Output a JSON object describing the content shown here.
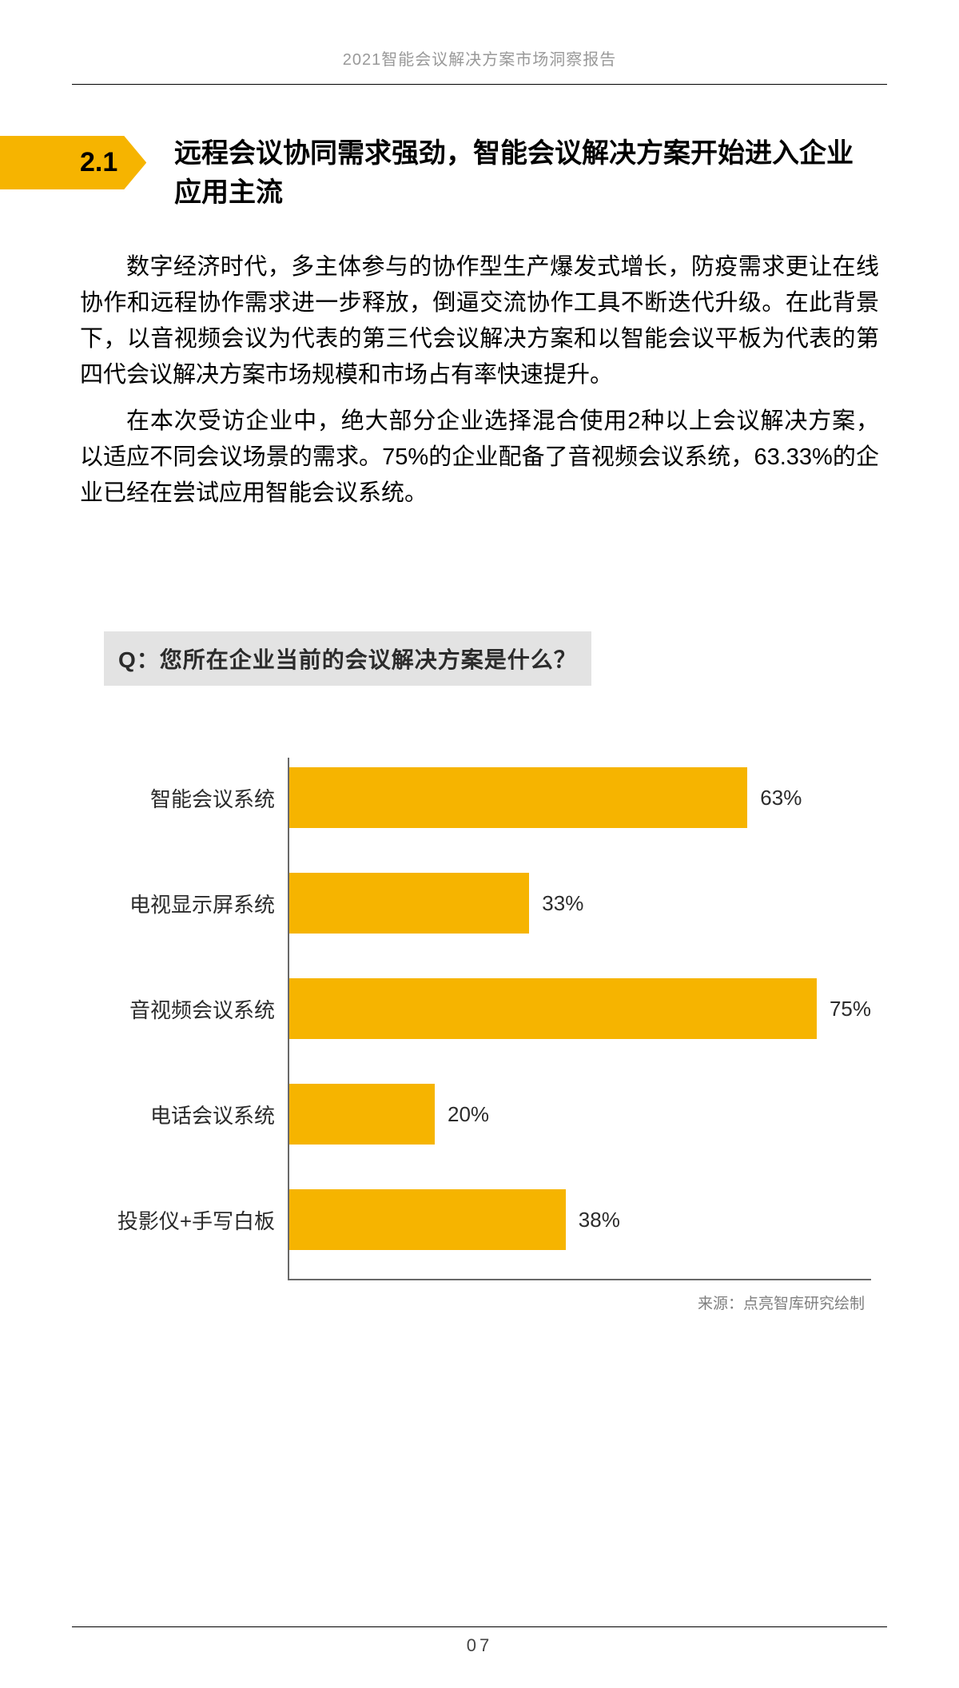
{
  "header": {
    "report_title": "2021智能会议解决方案市场洞察报告"
  },
  "section": {
    "number": "2.1",
    "title": "远程会议协同需求强劲，智能会议解决方案开始进入企业应用主流"
  },
  "paragraphs": {
    "p1": "数字经济时代，多主体参与的协作型生产爆发式增长，防疫需求更让在线协作和远程协作需求进一步释放，倒逼交流协作工具不断迭代升级。在此背景下，以音视频会议为代表的第三代会议解决方案和以智能会议平板为代表的第四代会议解决方案市场规模和市场占有率快速提升。",
    "p2": "在本次受访企业中，绝大部分企业选择混合使用2种以上会议解决方案，以适应不同会议场景的需求。75%的企业配备了音视频会议系统，63.33%的企业已经在尝试应用智能会议系统。"
  },
  "chart": {
    "type": "bar-horizontal",
    "question": "Q：您所在企业当前的会议解决方案是什么？",
    "max_value": 80,
    "bar_color": "#f6b400",
    "axis_color": "#696969",
    "question_bg": "#e3e3e3",
    "label_fontsize": 26,
    "value_fontsize": 26,
    "items": [
      {
        "label": "智能会议系统",
        "value": 63,
        "display": "63%"
      },
      {
        "label": "电视显示屏系统",
        "value": 33,
        "display": "33%"
      },
      {
        "label": "音视频会议系统",
        "value": 75,
        "display": "75%"
      },
      {
        "label": "电话会议系统",
        "value": 20,
        "display": "20%"
      },
      {
        "label": "投影仪+手写白板",
        "value": 38,
        "display": "38%"
      }
    ],
    "source": "来源：点亮智库研究绘制"
  },
  "footer": {
    "page_number": "07"
  }
}
